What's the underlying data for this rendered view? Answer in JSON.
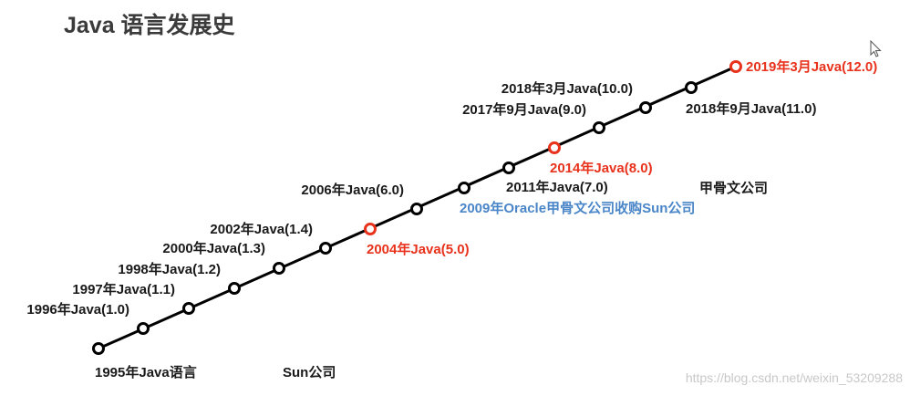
{
  "title": "Java 语言发展史",
  "colors": {
    "line": "#000000",
    "highlight": "#e8321c",
    "note_blue": "#4a86c8",
    "text": "#1a1a1a"
  },
  "milestones": [
    {
      "label": "",
      "highlight": false
    },
    {
      "label": "1996年Java(1.0)",
      "highlight": false
    },
    {
      "label": "1997年Java(1.1)",
      "highlight": false
    },
    {
      "label": "1998年Java(1.2)",
      "highlight": false
    },
    {
      "label": "2000年Java(1.3)",
      "highlight": false
    },
    {
      "label": "2002年Java(1.4)",
      "highlight": false
    },
    {
      "label": "2004年Java(5.0)",
      "highlight": true
    },
    {
      "label": "2006年Java(6.0)",
      "highlight": false
    },
    {
      "label": "2009年Oracle甲骨文公司收购Sun公司",
      "highlight": false
    },
    {
      "label": "2011年Java(7.0)",
      "highlight": false
    },
    {
      "label": "2014年Java(8.0)",
      "highlight": true
    },
    {
      "label": "2017年9月Java(9.0)",
      "highlight": false
    },
    {
      "label": "2018年3月Java(10.0)",
      "highlight": false
    },
    {
      "label": "2018年9月Java(11.0)",
      "highlight": false
    },
    {
      "label": "2019年3月Java(12.0)",
      "highlight": true
    }
  ],
  "start_label": "1995年Java语言",
  "company_sun": "Sun公司",
  "company_oracle": "甲骨文公司",
  "watermark": "https://blog.csdn.net/weixin_53209288",
  "cursor_icon": "arrow-cursor-icon"
}
